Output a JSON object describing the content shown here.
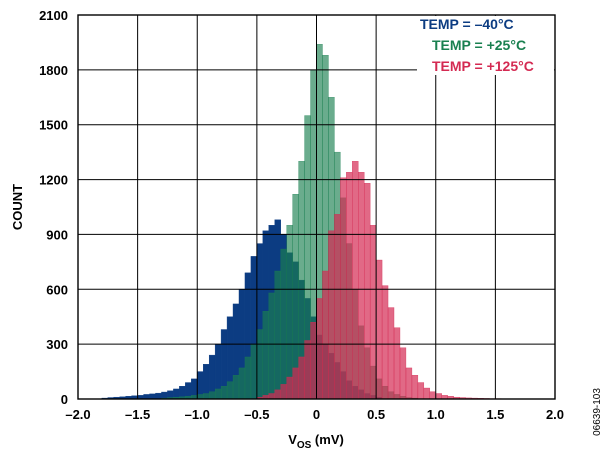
{
  "chart_data": {
    "type": "bar",
    "xlabel_main": "V",
    "xlabel_sub": "OS",
    "xlabel_unit": " (mV)",
    "ylabel": "COUNT",
    "xlim": [
      -2.0,
      2.0
    ],
    "ylim": [
      0,
      2100
    ],
    "xticks": [
      "–2.0",
      "–1.5",
      "–1.0",
      "–0.5",
      "0",
      "0.5",
      "1.0",
      "1.5",
      "2.0"
    ],
    "yticks": [
      "0",
      "300",
      "600",
      "900",
      "1200",
      "1500",
      "1800",
      "2100"
    ],
    "grid": true,
    "legend_position": "top-right",
    "bin_width": 0.05,
    "series": [
      {
        "name": "TEMP = –40°C",
        "color": "#0c3c82",
        "opacity": 1.0,
        "x": [
          -1.8,
          -1.75,
          -1.7,
          -1.65,
          -1.6,
          -1.55,
          -1.5,
          -1.45,
          -1.4,
          -1.35,
          -1.3,
          -1.25,
          -1.2,
          -1.15,
          -1.1,
          -1.05,
          -1.0,
          -0.95,
          -0.9,
          -0.85,
          -0.8,
          -0.75,
          -0.7,
          -0.65,
          -0.6,
          -0.55,
          -0.5,
          -0.45,
          -0.4,
          -0.35,
          -0.3,
          -0.25,
          -0.2,
          -0.15,
          -0.1,
          -0.05,
          0.0,
          0.05,
          0.1,
          0.15,
          0.2,
          0.25,
          0.3,
          0.35,
          0.4,
          0.45,
          0.5
        ],
        "values": [
          5,
          8,
          10,
          12,
          15,
          18,
          20,
          25,
          28,
          32,
          38,
          45,
          55,
          70,
          90,
          110,
          150,
          190,
          240,
          300,
          380,
          450,
          520,
          600,
          690,
          780,
          850,
          920,
          950,
          980,
          900,
          800,
          750,
          650,
          550,
          450,
          350,
          300,
          250,
          200,
          150,
          100,
          70,
          50,
          30,
          20,
          10
        ]
      },
      {
        "name": "TEMP = +25°C",
        "color": "#1a8050",
        "opacity": 0.65,
        "x": [
          -1.3,
          -1.25,
          -1.2,
          -1.15,
          -1.1,
          -1.05,
          -1.0,
          -0.95,
          -0.9,
          -0.85,
          -0.8,
          -0.75,
          -0.7,
          -0.65,
          -0.6,
          -0.55,
          -0.5,
          -0.45,
          -0.4,
          -0.35,
          -0.3,
          -0.25,
          -0.2,
          -0.15,
          -0.1,
          -0.05,
          0.0,
          0.05,
          0.1,
          0.15,
          0.2,
          0.25,
          0.3,
          0.35,
          0.4,
          0.45,
          0.5,
          0.55,
          0.6,
          0.65,
          0.7,
          0.75,
          0.8
        ],
        "values": [
          5,
          8,
          10,
          12,
          15,
          20,
          25,
          30,
          40,
          55,
          70,
          95,
          130,
          170,
          230,
          300,
          380,
          480,
          580,
          700,
          820,
          950,
          1120,
          1300,
          1550,
          1800,
          1940,
          1880,
          1650,
          1350,
          1100,
          850,
          600,
          400,
          280,
          180,
          110,
          70,
          40,
          25,
          15,
          8,
          5
        ]
      },
      {
        "name": "TEMP = +125°C",
        "color": "#d42a52",
        "opacity": 0.7,
        "x": [
          -0.5,
          -0.45,
          -0.4,
          -0.35,
          -0.3,
          -0.25,
          -0.2,
          -0.15,
          -0.1,
          -0.05,
          0.0,
          0.05,
          0.1,
          0.15,
          0.2,
          0.25,
          0.3,
          0.35,
          0.4,
          0.45,
          0.5,
          0.55,
          0.6,
          0.65,
          0.7,
          0.75,
          0.8,
          0.85,
          0.9,
          0.95,
          1.0,
          1.05,
          1.1,
          1.15,
          1.2,
          1.25,
          1.3,
          1.35,
          1.4,
          1.45,
          1.5,
          1.55,
          1.6
        ],
        "values": [
          10,
          20,
          30,
          50,
          80,
          120,
          170,
          230,
          320,
          420,
          550,
          700,
          920,
          1010,
          1210,
          1240,
          1300,
          1240,
          1180,
          950,
          760,
          620,
          500,
          390,
          280,
          170,
          130,
          90,
          60,
          40,
          30,
          20,
          15,
          10,
          8,
          6,
          5,
          4,
          3,
          2,
          2,
          1,
          1
        ]
      }
    ]
  },
  "figure_id": "06639-103"
}
